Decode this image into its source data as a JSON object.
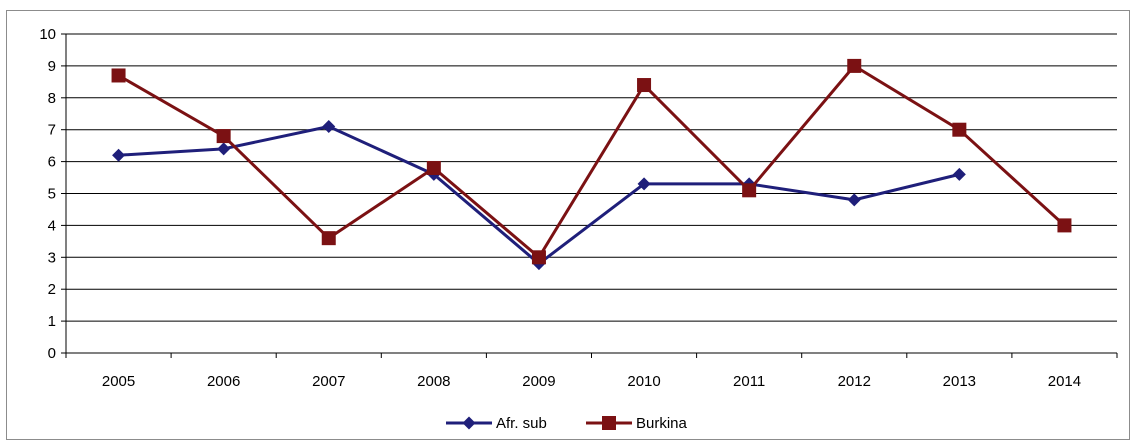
{
  "chart_data": {
    "type": "line",
    "title": "",
    "xlabel": "",
    "ylabel": "",
    "categories": [
      "2005",
      "2006",
      "2007",
      "2008",
      "2009",
      "2010",
      "2011",
      "2012",
      "2013",
      "2014"
    ],
    "ylim": [
      0,
      10
    ],
    "yticks": [
      "0",
      "1",
      "2",
      "3",
      "4",
      "5",
      "6",
      "7",
      "8",
      "9",
      "10"
    ],
    "grid": "horizontal",
    "legend_position": "bottom",
    "series": [
      {
        "name": "Afr. sub",
        "color": "#1f1f7a",
        "marker": "diamond",
        "values": [
          6.2,
          6.4,
          7.1,
          5.6,
          2.8,
          5.3,
          5.3,
          4.8,
          5.6,
          null
        ]
      },
      {
        "name": "Burkina",
        "color": "#7b1113",
        "marker": "square",
        "values": [
          8.7,
          6.8,
          3.6,
          5.8,
          3.0,
          8.4,
          5.1,
          9.0,
          7.0,
          4.0
        ]
      }
    ]
  }
}
